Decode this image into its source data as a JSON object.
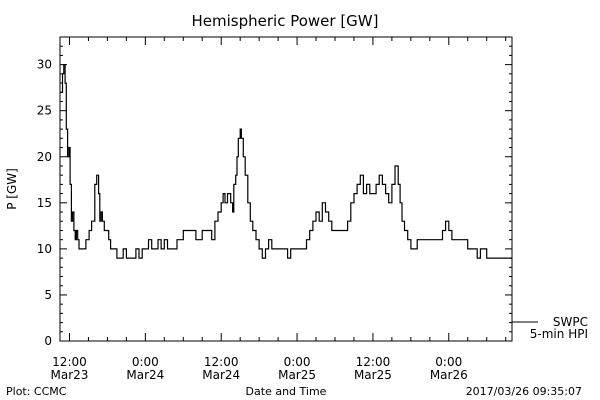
{
  "chart_data": {
    "type": "line",
    "title": "Hemispheric Power [GW]",
    "xlabel": "Date and Time",
    "ylabel": "P [GW]",
    "x_unit": "hours since 2017-03-23 00:00",
    "xlim": [
      10.5,
      82
    ],
    "ylim": [
      0,
      33
    ],
    "y_ticks": [
      0,
      5,
      10,
      15,
      20,
      25,
      30
    ],
    "x_ticks": [
      {
        "x": 12,
        "time": "12:00",
        "date": "Mar23"
      },
      {
        "x": 24,
        "time": "0:00",
        "date": "Mar24"
      },
      {
        "x": 36,
        "time": "12:00",
        "date": "Mar24"
      },
      {
        "x": 48,
        "time": "0:00",
        "date": "Mar25"
      },
      {
        "x": 60,
        "time": "12:00",
        "date": "Mar25"
      },
      {
        "x": 72,
        "time": "0:00",
        "date": "Mar26"
      }
    ],
    "legend": [
      {
        "name": "SWPC",
        "placement": "right"
      },
      {
        "name": "5-min HPI",
        "placement": "right"
      }
    ],
    "series": [
      {
        "name": "5-min HPI",
        "x": [
          10.6,
          10.9,
          11.1,
          11.3,
          11.5,
          11.7,
          11.9,
          12.1,
          12.3,
          12.5,
          12.7,
          12.9,
          13.1,
          13.3,
          13.5,
          13.8,
          14.1,
          14.6,
          15.1,
          15.5,
          16.0,
          16.3,
          16.6,
          16.8,
          17.0,
          17.2,
          17.5,
          17.8,
          18.2,
          18.5,
          19.0,
          19.5,
          20.0,
          20.5,
          21.0,
          21.5,
          22.0,
          22.5,
          23.0,
          23.5,
          24.0,
          24.5,
          25.0,
          25.5,
          26.0,
          26.5,
          27.0,
          27.5,
          28.0,
          29.0,
          30.0,
          31.0,
          32.0,
          33.0,
          34.0,
          34.5,
          35.0,
          35.5,
          36.0,
          36.3,
          36.6,
          37.0,
          37.5,
          37.8,
          38.0,
          38.3,
          38.5,
          38.7,
          39.0,
          39.2,
          39.5,
          39.8,
          40.2,
          40.6,
          41.0,
          41.5,
          42.0,
          42.5,
          43.0,
          43.5,
          44.0,
          45.0,
          46.0,
          46.5,
          47.0,
          48.0,
          49.0,
          49.5,
          50.0,
          50.5,
          51.0,
          51.5,
          52.0,
          52.5,
          53.0,
          53.5,
          54.0,
          55.0,
          56.0,
          56.5,
          57.0,
          57.5,
          58.0,
          58.5,
          59.0,
          59.5,
          60.0,
          60.5,
          61.0,
          61.5,
          62.0,
          62.5,
          63.0,
          63.5,
          64.0,
          64.3,
          64.6,
          65.0,
          65.5,
          66.0,
          66.5,
          67.0,
          67.5,
          68.0,
          69.0,
          70.0,
          70.5,
          71.0,
          71.5,
          72.0,
          72.5,
          73.0,
          73.5,
          74.0,
          75.0,
          76.0,
          76.5,
          77.0,
          77.5,
          78.0,
          79.0,
          80.0,
          81.0,
          82.0
        ],
        "y": [
          27,
          29,
          30,
          28,
          23,
          20,
          21,
          17,
          13,
          14,
          12,
          11,
          12,
          11,
          10,
          10,
          10,
          11,
          12,
          13,
          17,
          18,
          16,
          13,
          14,
          13,
          12,
          12,
          11,
          10,
          10,
          9,
          9,
          10,
          9,
          9,
          9,
          10,
          9,
          10,
          10,
          11,
          10,
          10,
          11,
          10,
          11,
          10,
          10,
          11,
          12,
          12,
          11,
          12,
          12,
          11,
          13,
          14,
          15,
          16,
          15,
          16,
          15,
          14,
          17,
          18,
          20,
          22,
          23,
          22,
          20,
          18,
          15,
          13,
          12,
          11,
          10,
          9,
          10,
          11,
          10,
          10,
          10,
          9,
          10,
          10,
          10,
          11,
          12,
          13,
          14,
          13,
          15,
          14,
          13,
          12,
          12,
          12,
          13,
          15,
          16,
          17,
          18,
          16,
          17,
          16,
          16,
          17,
          18,
          17,
          16,
          15,
          17,
          19,
          17,
          15,
          13,
          12,
          11,
          10,
          10,
          11,
          11,
          11,
          11,
          11,
          11,
          12,
          13,
          12,
          11,
          11,
          11,
          11,
          10,
          10,
          9,
          10,
          10,
          9,
          9,
          9,
          9,
          9
        ]
      }
    ]
  },
  "footer": {
    "left": "Plot: CCMC",
    "right": "2017/03/26 09:35:07"
  }
}
